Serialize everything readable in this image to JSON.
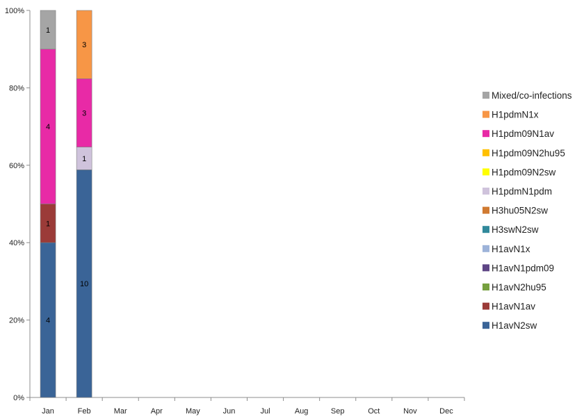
{
  "chart_data": {
    "type": "bar",
    "stacked": true,
    "normalized_percent": true,
    "categories": [
      "Jan",
      "Feb",
      "Mar",
      "Apr",
      "May",
      "Jun",
      "Jul",
      "Aug",
      "Sep",
      "Oct",
      "Nov",
      "Dec"
    ],
    "y_ticks": [
      "0%",
      "20%",
      "40%",
      "60%",
      "80%",
      "100%"
    ],
    "ylim": [
      0,
      100
    ],
    "legend_position": "right",
    "series": [
      {
        "name": "H1avN2sw",
        "color": "#3a6497",
        "values": [
          4,
          10,
          0,
          0,
          0,
          0,
          0,
          0,
          0,
          0,
          0,
          0
        ]
      },
      {
        "name": "H1avN1av",
        "color": "#9b3b38",
        "values": [
          1,
          0,
          0,
          0,
          0,
          0,
          0,
          0,
          0,
          0,
          0,
          0
        ]
      },
      {
        "name": "H1avN2hu95",
        "color": "#76a03f",
        "values": [
          0,
          0,
          0,
          0,
          0,
          0,
          0,
          0,
          0,
          0,
          0,
          0
        ]
      },
      {
        "name": "H1avN1pdm09",
        "color": "#5e4585",
        "values": [
          0,
          0,
          0,
          0,
          0,
          0,
          0,
          0,
          0,
          0,
          0,
          0
        ]
      },
      {
        "name": "H1avN1x",
        "color": "#9db3d9",
        "values": [
          0,
          0,
          0,
          0,
          0,
          0,
          0,
          0,
          0,
          0,
          0,
          0
        ]
      },
      {
        "name": "H3swN2sw",
        "color": "#31899b",
        "values": [
          0,
          0,
          0,
          0,
          0,
          0,
          0,
          0,
          0,
          0,
          0,
          0
        ]
      },
      {
        "name": "H3hu05N2sw",
        "color": "#d07a31",
        "values": [
          0,
          0,
          0,
          0,
          0,
          0,
          0,
          0,
          0,
          0,
          0,
          0
        ]
      },
      {
        "name": "H1pdmN1pdm",
        "color": "#cfc3dc",
        "values": [
          0,
          1,
          0,
          0,
          0,
          0,
          0,
          0,
          0,
          0,
          0,
          0
        ]
      },
      {
        "name": "H1pdm09N2sw",
        "color": "#ffff00",
        "values": [
          0,
          0,
          0,
          0,
          0,
          0,
          0,
          0,
          0,
          0,
          0,
          0
        ]
      },
      {
        "name": "H1pdm09N2hu95",
        "color": "#ffc000",
        "values": [
          0,
          0,
          0,
          0,
          0,
          0,
          0,
          0,
          0,
          0,
          0,
          0
        ]
      },
      {
        "name": "H1pdm09N1av",
        "color": "#e82aa6",
        "values": [
          4,
          3,
          0,
          0,
          0,
          0,
          0,
          0,
          0,
          0,
          0,
          0
        ]
      },
      {
        "name": "H1pdmN1x",
        "color": "#f79646",
        "values": [
          0,
          3,
          0,
          0,
          0,
          0,
          0,
          0,
          0,
          0,
          0,
          0
        ]
      },
      {
        "name": "Mixed/co-infections",
        "color": "#a5a5a5",
        "values": [
          1,
          0,
          0,
          0,
          0,
          0,
          0,
          0,
          0,
          0,
          0,
          0
        ]
      }
    ]
  }
}
